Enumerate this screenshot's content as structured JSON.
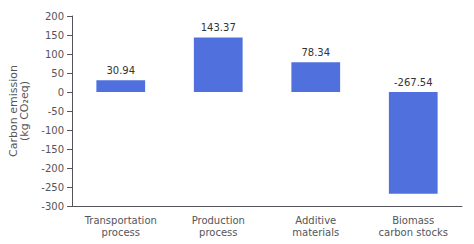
{
  "chart_data": {
    "type": "bar",
    "categories": [
      "Transportation\nprocess",
      "Production\nprocess",
      "Additive\nmaterials",
      "Biomass\ncarbon stocks"
    ],
    "values": [
      30.94,
      143.37,
      78.34,
      -267.54
    ],
    "ylabel": "Carbon emission\n(kg CO₂eq)",
    "ylim": [
      -300,
      200
    ],
    "yticks": [
      -300,
      -250,
      -200,
      -150,
      -100,
      -50,
      0,
      50,
      100,
      150,
      200
    ],
    "data_labels": true,
    "grid": false
  }
}
